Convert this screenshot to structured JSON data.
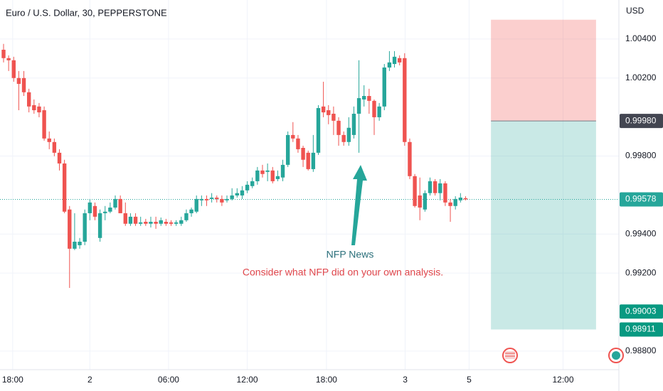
{
  "chart_data": {
    "type": "candlestick",
    "title": "Euro / U.S. Dollar, 30, PEPPERSTONE",
    "currency": "USD",
    "up_color": "#26a69a",
    "down_color": "#ef5350",
    "ylim": [
      0.98705,
      1.006
    ],
    "yticks": [
      {
        "value": 1.004,
        "label": "1.00400"
      },
      {
        "value": 1.002,
        "label": "1.00200"
      },
      {
        "value": 0.998,
        "label": "0.99800"
      },
      {
        "value": 0.994,
        "label": "0.99400"
      },
      {
        "value": 0.992,
        "label": "0.99200"
      },
      {
        "value": 0.988,
        "label": "0.98800"
      }
    ],
    "xlim": [
      -0.7,
      121.2
    ],
    "xticks": [
      {
        "value": 1.8,
        "label": "18:00"
      },
      {
        "value": 17.0,
        "label": "2"
      },
      {
        "value": 32.5,
        "label": "06:00"
      },
      {
        "value": 48.0,
        "label": "12:00"
      },
      {
        "value": 63.6,
        "label": "18:00"
      },
      {
        "value": 79.1,
        "label": "3"
      },
      {
        "value": 91.7,
        "label": "5"
      },
      {
        "value": 110.2,
        "label": "12:00"
      }
    ],
    "ohlc": [
      [
        1.00345,
        1.00375,
        1.0028,
        1.00302
      ],
      [
        1.00302,
        1.00316,
        1.00236,
        1.00291
      ],
      [
        1.00291,
        1.00309,
        1.00181,
        1.002
      ],
      [
        1.002,
        1.00236,
        1.00035,
        1.0017
      ],
      [
        1.002,
        1.00236,
        1.00108,
        1.00127
      ],
      [
        1.00127,
        1.00145,
        1.00024,
        1.00054
      ],
      [
        1.00061,
        1.0009,
        1.00017,
        1.00035
      ],
      [
        1.00054,
        1.00072,
        0.99999,
        1.00024
      ],
      [
        1.00035,
        1.00054,
        0.99879,
        0.9989
      ],
      [
        0.9989,
        0.99926,
        0.99835,
        0.99872
      ],
      [
        0.99872,
        0.9989,
        0.99799,
        0.99817
      ],
      [
        0.99817,
        0.99835,
        0.99726,
        0.99762
      ],
      [
        0.99762,
        0.99781,
        0.99507,
        0.99515
      ],
      [
        0.99526,
        0.99544,
        0.99124,
        0.99325
      ],
      [
        0.99325,
        0.99507,
        0.99318,
        0.99361
      ],
      [
        0.99343,
        0.9938,
        0.99325,
        0.99361
      ],
      [
        0.99361,
        0.99526,
        0.99343,
        0.99507
      ],
      [
        0.99507,
        0.9958,
        0.99471,
        0.99562
      ],
      [
        0.99544,
        0.99562,
        0.99471,
        0.99489
      ],
      [
        0.9938,
        0.99526,
        0.99361,
        0.99507
      ],
      [
        0.99507,
        0.99544,
        0.99471,
        0.99515
      ],
      [
        0.99515,
        0.99562,
        0.99507,
        0.99536
      ],
      [
        0.99536,
        0.99598,
        0.99526,
        0.9958
      ],
      [
        0.9958,
        0.99598,
        0.99507,
        0.99507
      ],
      [
        0.99507,
        0.99562,
        0.99442,
        0.99453
      ],
      [
        0.99453,
        0.99507,
        0.99442,
        0.99489
      ],
      [
        0.99489,
        0.99507,
        0.99442,
        0.99453
      ],
      [
        0.99453,
        0.99489,
        0.99442,
        0.9946
      ],
      [
        0.99463,
        0.99478,
        0.99442,
        0.99453
      ],
      [
        0.99453,
        0.99489,
        0.99434,
        0.99463
      ],
      [
        0.99463,
        0.99489,
        0.99427,
        0.99453
      ],
      [
        0.99453,
        0.99485,
        0.99442,
        0.99471
      ],
      [
        0.99463,
        0.99478,
        0.99442,
        0.99453
      ],
      [
        0.9946,
        0.99471,
        0.99442,
        0.99453
      ],
      [
        0.99453,
        0.99471,
        0.99442,
        0.9946
      ],
      [
        0.99453,
        0.99489,
        0.99442,
        0.99471
      ],
      [
        0.99471,
        0.99526,
        0.99463,
        0.99507
      ],
      [
        0.99507,
        0.99536,
        0.99489,
        0.99526
      ],
      [
        0.99515,
        0.99598,
        0.99507,
        0.9958
      ],
      [
        0.99573,
        0.99598,
        0.99544,
        0.9958
      ],
      [
        0.9958,
        0.99598,
        0.99544,
        0.99573
      ],
      [
        0.9958,
        0.9961,
        0.99562,
        0.99587
      ],
      [
        0.99587,
        0.99598,
        0.99562,
        0.9958
      ],
      [
        0.9958,
        0.99598,
        0.99544,
        0.99562
      ],
      [
        0.99573,
        0.99598,
        0.99562,
        0.9958
      ],
      [
        0.9958,
        0.99635,
        0.99573,
        0.99598
      ],
      [
        0.99598,
        0.99635,
        0.99587,
        0.9961
      ],
      [
        0.99598,
        0.99646,
        0.9958,
        0.99624
      ],
      [
        0.99624,
        0.99671,
        0.9961,
        0.99653
      ],
      [
        0.99646,
        0.9969,
        0.99635,
        0.99671
      ],
      [
        0.99671,
        0.99744,
        0.99653,
        0.99726
      ],
      [
        0.99726,
        0.99755,
        0.9969,
        0.99708
      ],
      [
        0.99719,
        0.99762,
        0.99671,
        0.99726
      ],
      [
        0.99726,
        0.99744,
        0.9966,
        0.99671
      ],
      [
        0.99682,
        0.99726,
        0.99671,
        0.99697
      ],
      [
        0.9969,
        0.99781,
        0.99671,
        0.99755
      ],
      [
        0.99755,
        0.99926,
        0.99744,
        0.99908
      ],
      [
        0.99908,
        0.99974,
        0.99872,
        0.9989
      ],
      [
        0.9989,
        0.99908,
        0.99817,
        0.99835
      ],
      [
        0.99842,
        0.99853,
        0.99744,
        0.99781
      ],
      [
        0.99817,
        0.99828,
        0.99726,
        0.99733
      ],
      [
        0.99733,
        0.99908,
        0.99719,
        0.99817
      ],
      [
        0.99817,
        1.00061,
        0.99806,
        1.00046
      ],
      [
        1.00054,
        1.00181,
        0.99999,
        1.00024
      ],
      [
        1.00035,
        1.00061,
        0.99963,
        1.0001
      ],
      [
        1.00017,
        1.00054,
        0.99908,
        0.99981
      ],
      [
        0.99981,
        0.99999,
        0.99853,
        0.99908
      ],
      [
        0.99908,
        0.99926,
        0.99853,
        0.99872
      ],
      [
        0.99872,
        0.99999,
        0.99853,
        0.99945
      ],
      [
        0.99908,
        1.00054,
        0.9989,
        1.00017
      ],
      [
        1.00017,
        1.00291,
        0.99817,
        1.00097
      ],
      [
        1.0009,
        1.00163,
        1.00054,
        1.00108
      ],
      [
        1.00108,
        1.00145,
        1.00017,
        1.00083
      ],
      [
        1.00083,
        1.0009,
        0.99908,
        0.99999
      ],
      [
        0.99999,
        1.00072,
        0.99981,
        1.00054
      ],
      [
        1.00054,
        1.00272,
        1.00035,
        1.00254
      ],
      [
        1.00254,
        1.00338,
        1.00236,
        1.0028
      ],
      [
        1.00272,
        1.00338,
        1.00254,
        1.00309
      ],
      [
        1.00302,
        1.00316,
        1.00265,
        1.0028
      ],
      [
        1.00302,
        1.00327,
        0.99853,
        0.99872
      ],
      [
        0.99872,
        0.9989,
        0.99682,
        0.99697
      ],
      [
        0.99697,
        0.99708,
        0.99536,
        0.99544
      ],
      [
        0.99598,
        0.9969,
        0.99471,
        0.99536
      ],
      [
        0.99526,
        0.99624,
        0.99515,
        0.9961
      ],
      [
        0.9961,
        0.9969,
        0.99598,
        0.99671
      ],
      [
        0.99671,
        0.99682,
        0.99598,
        0.9961
      ],
      [
        0.9961,
        0.99682,
        0.99573,
        0.9966
      ],
      [
        0.9966,
        0.99671,
        0.99544,
        0.99562
      ],
      [
        0.99562,
        0.9958,
        0.99463,
        0.99544
      ],
      [
        0.99544,
        0.99594,
        0.99526,
        0.9958
      ],
      [
        0.99573,
        0.9961,
        0.99562,
        0.99587
      ],
      [
        0.99584,
        0.99594,
        0.99573,
        0.99578
      ]
    ],
    "position": {
      "x_start": 96,
      "x_end": 116.7,
      "stop": 1.00499,
      "entry": 0.9998,
      "target": 0.98911
    },
    "price_labels": [
      {
        "value": 0.9998,
        "label": "0.99980",
        "color": "#434651"
      },
      {
        "value": 0.99578,
        "label": "0.99578",
        "color": "#26a69a"
      },
      {
        "value": 0.99003,
        "label": "0.99003",
        "color": "#089981"
      },
      {
        "value": 0.98911,
        "label": "0.98911",
        "color": "#089981"
      }
    ],
    "current_price": 0.99578,
    "annotations": [
      "NFP News",
      "Consider what NFP did on your own analysis."
    ]
  }
}
